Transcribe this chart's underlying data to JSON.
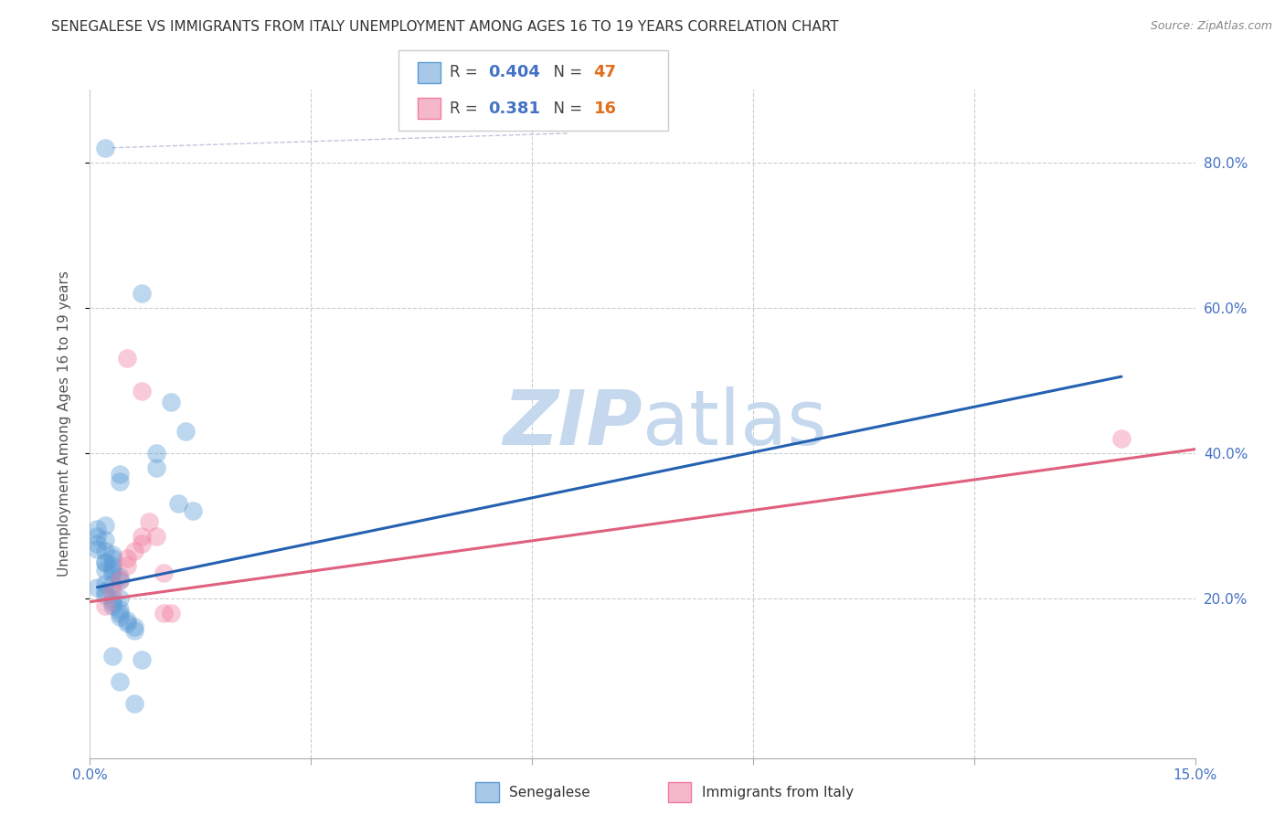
{
  "title": "SENEGALESE VS IMMIGRANTS FROM ITALY UNEMPLOYMENT AMONG AGES 16 TO 19 YEARS CORRELATION CHART",
  "source": "Source: ZipAtlas.com",
  "xlabel": "",
  "ylabel": "Unemployment Among Ages 16 to 19 years",
  "xlim": [
    0.0,
    0.15
  ],
  "ylim": [
    -0.02,
    0.9
  ],
  "xticks": [
    0.0,
    0.03,
    0.06,
    0.09,
    0.12,
    0.15
  ],
  "xtick_labels": [
    "0.0%",
    "",
    "",
    "",
    "",
    "15.0%"
  ],
  "ytick_labels_right": [
    "20.0%",
    "40.0%",
    "60.0%",
    "80.0%"
  ],
  "ytick_vals_right": [
    0.2,
    0.4,
    0.6,
    0.8
  ],
  "grid_color": "#cccccc",
  "background_color": "#ffffff",
  "legend_R_blue": "0.404",
  "legend_N_blue": "47",
  "legend_R_pink": "0.381",
  "legend_N_pink": "16",
  "blue_color": "#5b9bd5",
  "pink_color": "#f07b9e",
  "blue_scatter": [
    [
      0.002,
      0.82
    ],
    [
      0.007,
      0.62
    ],
    [
      0.011,
      0.47
    ],
    [
      0.013,
      0.43
    ],
    [
      0.009,
      0.4
    ],
    [
      0.009,
      0.38
    ],
    [
      0.004,
      0.37
    ],
    [
      0.004,
      0.36
    ],
    [
      0.012,
      0.33
    ],
    [
      0.014,
      0.32
    ],
    [
      0.002,
      0.3
    ],
    [
      0.002,
      0.28
    ],
    [
      0.002,
      0.265
    ],
    [
      0.003,
      0.26
    ],
    [
      0.003,
      0.255
    ],
    [
      0.002,
      0.25
    ],
    [
      0.002,
      0.248
    ],
    [
      0.003,
      0.245
    ],
    [
      0.003,
      0.24
    ],
    [
      0.002,
      0.238
    ],
    [
      0.003,
      0.235
    ],
    [
      0.004,
      0.23
    ],
    [
      0.004,
      0.225
    ],
    [
      0.003,
      0.22
    ],
    [
      0.002,
      0.22
    ],
    [
      0.002,
      0.21
    ],
    [
      0.002,
      0.205
    ],
    [
      0.003,
      0.2
    ],
    [
      0.004,
      0.2
    ],
    [
      0.003,
      0.195
    ],
    [
      0.003,
      0.19
    ],
    [
      0.004,
      0.185
    ],
    [
      0.004,
      0.18
    ],
    [
      0.004,
      0.175
    ],
    [
      0.005,
      0.17
    ],
    [
      0.005,
      0.165
    ],
    [
      0.006,
      0.16
    ],
    [
      0.006,
      0.155
    ],
    [
      0.003,
      0.12
    ],
    [
      0.007,
      0.115
    ],
    [
      0.004,
      0.085
    ],
    [
      0.006,
      0.055
    ],
    [
      0.001,
      0.295
    ],
    [
      0.001,
      0.285
    ],
    [
      0.001,
      0.275
    ],
    [
      0.001,
      0.268
    ],
    [
      0.001,
      0.215
    ]
  ],
  "pink_scatter": [
    [
      0.002,
      0.19
    ],
    [
      0.003,
      0.21
    ],
    [
      0.004,
      0.225
    ],
    [
      0.005,
      0.245
    ],
    [
      0.005,
      0.255
    ],
    [
      0.006,
      0.265
    ],
    [
      0.007,
      0.275
    ],
    [
      0.007,
      0.285
    ],
    [
      0.005,
      0.53
    ],
    [
      0.007,
      0.485
    ],
    [
      0.008,
      0.305
    ],
    [
      0.009,
      0.285
    ],
    [
      0.01,
      0.235
    ],
    [
      0.01,
      0.18
    ],
    [
      0.011,
      0.18
    ],
    [
      0.14,
      0.42
    ]
  ],
  "blue_line_x": [
    0.001,
    0.14
  ],
  "blue_line_y": [
    0.215,
    0.505
  ],
  "pink_line_x": [
    0.0,
    0.15
  ],
  "pink_line_y": [
    0.195,
    0.405
  ],
  "diag_line_x": [
    0.003,
    0.065
  ],
  "diag_line_y": [
    0.82,
    0.84
  ],
  "watermark_zip": "ZIP",
  "watermark_atlas": "atlas",
  "watermark_color_zip": "#c8d8ec",
  "watermark_color_atlas": "#c8d8ec",
  "title_fontsize": 11,
  "label_fontsize": 11,
  "tick_fontsize": 11
}
